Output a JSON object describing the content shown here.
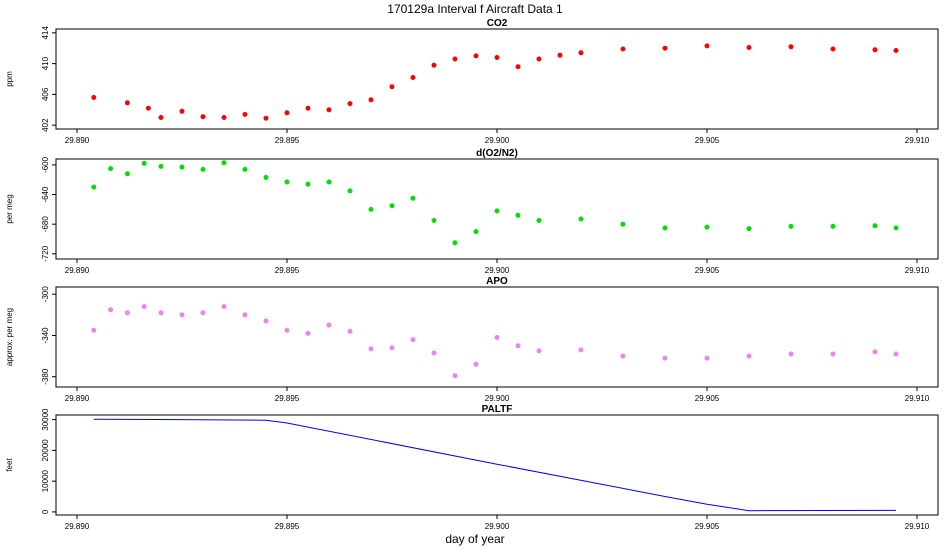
{
  "title": "170129a   Interval f Aircraft Data 1",
  "xlabel": "day of year",
  "chart_data": [
    {
      "type": "scatter",
      "title": "CO2",
      "ylabel": "ppm",
      "color": "#ff0000",
      "xlim": [
        29.8895,
        29.9105
      ],
      "ylim": [
        401.5,
        414.5
      ],
      "xticks": [
        29.89,
        29.895,
        29.9,
        29.905,
        29.91
      ],
      "xtick_labels": [
        "29.890",
        "29.895",
        "29.900",
        "29.905",
        "29.910"
      ],
      "yticks": [
        402,
        406,
        410,
        414
      ],
      "ytick_labels": [
        "402",
        "406",
        "410",
        "414"
      ],
      "series": [
        {
          "x": [
            29.8904,
            29.8912,
            29.8917,
            29.892,
            29.8925,
            29.893,
            29.8935,
            29.894,
            29.8945,
            29.895,
            29.8955,
            29.896,
            29.8965,
            29.897,
            29.8975,
            29.898,
            29.8985,
            29.899,
            29.8995,
            29.9,
            29.9005,
            29.901,
            29.9015,
            29.902,
            29.903,
            29.904,
            29.905,
            29.906,
            29.907,
            29.908,
            29.909,
            29.9095
          ],
          "y": [
            405.6,
            404.9,
            404.2,
            403.0,
            403.8,
            403.1,
            403.0,
            403.4,
            402.9,
            403.6,
            404.2,
            404.0,
            404.8,
            405.3,
            407.0,
            408.2,
            409.8,
            410.6,
            411.0,
            410.8,
            409.6,
            410.6,
            411.1,
            411.4,
            411.9,
            412.0,
            412.3,
            412.1,
            412.2,
            411.9,
            411.8,
            411.7
          ]
        }
      ]
    },
    {
      "type": "scatter",
      "title": "d(O2/N2)",
      "ylabel": "per meg",
      "color": "#00e000",
      "xlim": [
        29.8895,
        29.9105
      ],
      "ylim": [
        -727,
        -592
      ],
      "xticks": [
        29.89,
        29.895,
        29.9,
        29.905,
        29.91
      ],
      "xtick_labels": [
        "29.890",
        "29.895",
        "29.900",
        "29.905",
        "29.910"
      ],
      "yticks": [
        -600,
        -640,
        -680,
        -720
      ],
      "ytick_labels": [
        "-600",
        "-640",
        "-680",
        "-720"
      ],
      "series": [
        {
          "x": [
            29.8904,
            29.8908,
            29.8912,
            29.8916,
            29.892,
            29.8925,
            29.893,
            29.8935,
            29.894,
            29.8945,
            29.895,
            29.8955,
            29.896,
            29.8965,
            29.897,
            29.8975,
            29.898,
            29.8985,
            29.899,
            29.8995,
            29.9,
            29.9005,
            29.901,
            29.902,
            29.903,
            29.904,
            29.905,
            29.906,
            29.907,
            29.908,
            29.909,
            29.9095
          ],
          "y": [
            -630,
            -605,
            -612,
            -598,
            -602,
            -603,
            -606,
            -597,
            -606,
            -617,
            -623,
            -626,
            -623,
            -635,
            -660,
            -655,
            -645,
            -675,
            -705,
            -690,
            -662,
            -668,
            -675,
            -673,
            -680,
            -685,
            -684,
            -686,
            -683,
            -683,
            -682,
            -685
          ]
        }
      ]
    },
    {
      "type": "scatter",
      "title": "APO",
      "ylabel": "approx. per meg",
      "color": "#ee82ee",
      "xlim": [
        29.8895,
        29.9105
      ],
      "ylim": [
        -390,
        -293
      ],
      "xticks": [
        29.89,
        29.895,
        29.9,
        29.905,
        29.91
      ],
      "xtick_labels": [
        "29.890",
        "29.895",
        "29.900",
        "29.905",
        "29.910"
      ],
      "yticks": [
        -300,
        -340,
        -380
      ],
      "ytick_labels": [
        "-300",
        "-340",
        "-380"
      ],
      "series": [
        {
          "x": [
            29.8904,
            29.8908,
            29.8912,
            29.8916,
            29.892,
            29.8925,
            29.893,
            29.8935,
            29.894,
            29.8945,
            29.895,
            29.8955,
            29.896,
            29.8965,
            29.897,
            29.8975,
            29.898,
            29.8985,
            29.899,
            29.8995,
            29.9,
            29.9005,
            29.901,
            29.902,
            29.903,
            29.904,
            29.905,
            29.906,
            29.907,
            29.908,
            29.909,
            29.9095
          ],
          "y": [
            -335,
            -315,
            -318,
            -312,
            -318,
            -320,
            -318,
            -312,
            -320,
            -326,
            -335,
            -338,
            -330,
            -336,
            -353,
            -352,
            -344,
            -357,
            -379,
            -368,
            -342,
            -350,
            -355,
            -354,
            -360,
            -362,
            -362,
            -360,
            -358,
            -358,
            -356,
            -358
          ]
        }
      ]
    },
    {
      "type": "line",
      "title": "PALTF",
      "ylabel": "feet",
      "color": "#0000ff",
      "xlim": [
        29.8895,
        29.9105
      ],
      "ylim": [
        -1000,
        31500
      ],
      "xticks": [
        29.89,
        29.895,
        29.9,
        29.905,
        29.91
      ],
      "xtick_labels": [
        "29.890",
        "29.895",
        "29.900",
        "29.905",
        "29.910"
      ],
      "yticks": [
        0,
        10000,
        20000,
        30000
      ],
      "ytick_labels": [
        "0",
        "10000",
        "20000",
        "30000"
      ],
      "series": [
        {
          "x": [
            29.8904,
            29.8925,
            29.8945,
            29.895,
            29.9,
            29.904,
            29.905,
            29.906,
            29.9095
          ],
          "y": [
            30100,
            30000,
            29800,
            28900,
            15500,
            5000,
            2500,
            400,
            500
          ]
        }
      ]
    }
  ]
}
